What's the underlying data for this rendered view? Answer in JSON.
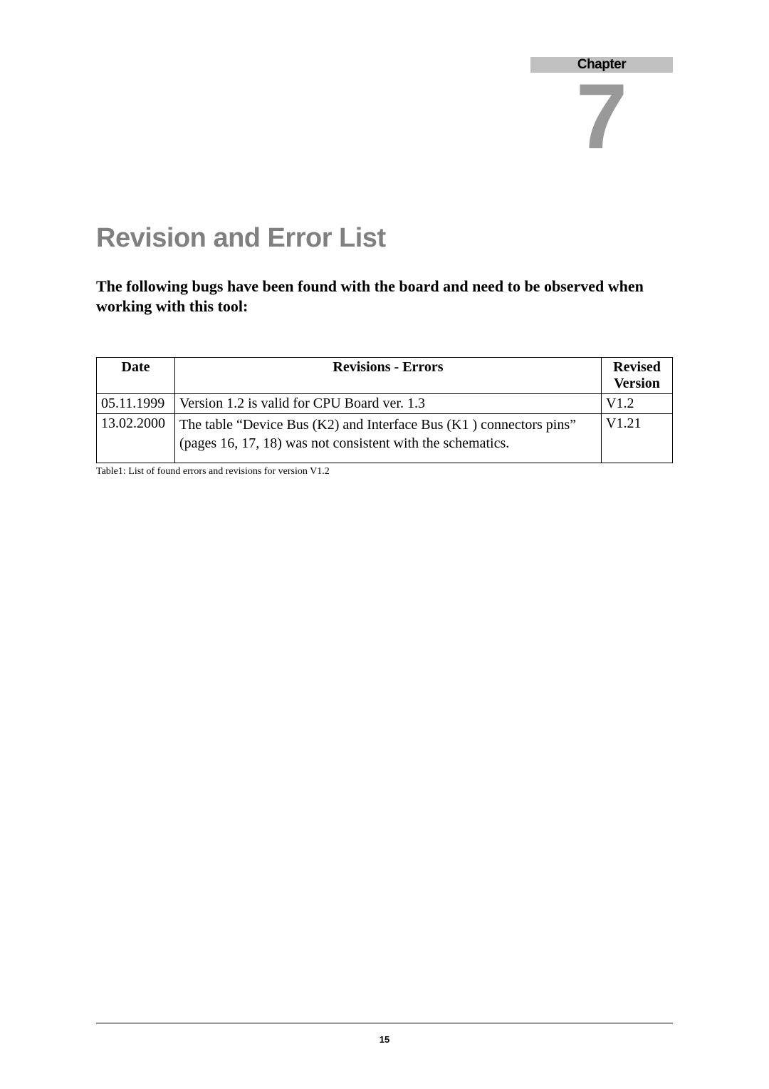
{
  "chapter": {
    "label": "Chapter",
    "number": "7"
  },
  "title": "Revision and Error List",
  "intro": "The following bugs have been found with the board and need to be observed when working with this tool:",
  "table": {
    "columns": [
      "Date",
      "Revisions - Errors",
      "Revised Version"
    ],
    "rows": [
      {
        "date": "05.11.1999",
        "rev": "Version 1.2 is valid for  CPU Board ver. 1.3",
        "ver": "V1.2"
      },
      {
        "date": "13.02.2000",
        "rev": "The table “Device Bus (K2) and Interface Bus (K1 ) connectors pins”  (pages 16, 17, 18) was not consistent with the schematics.",
        "ver": "V1.21"
      }
    ],
    "caption": "Table1: List of found errors and revisions for version V1.2"
  },
  "page_number": "15",
  "colors": {
    "chapter_bar_bg": "#c0c0c0",
    "chapter_number_color": "#999999",
    "title_color": "#808080",
    "text_color": "#000000",
    "background": "#ffffff"
  },
  "typography": {
    "chapter_label_fontsize": 19,
    "chapter_number_fontsize": 130,
    "title_fontsize": 38,
    "intro_fontsize": 22,
    "table_fontsize": 20,
    "caption_fontsize": 14,
    "page_number_fontsize": 13
  }
}
